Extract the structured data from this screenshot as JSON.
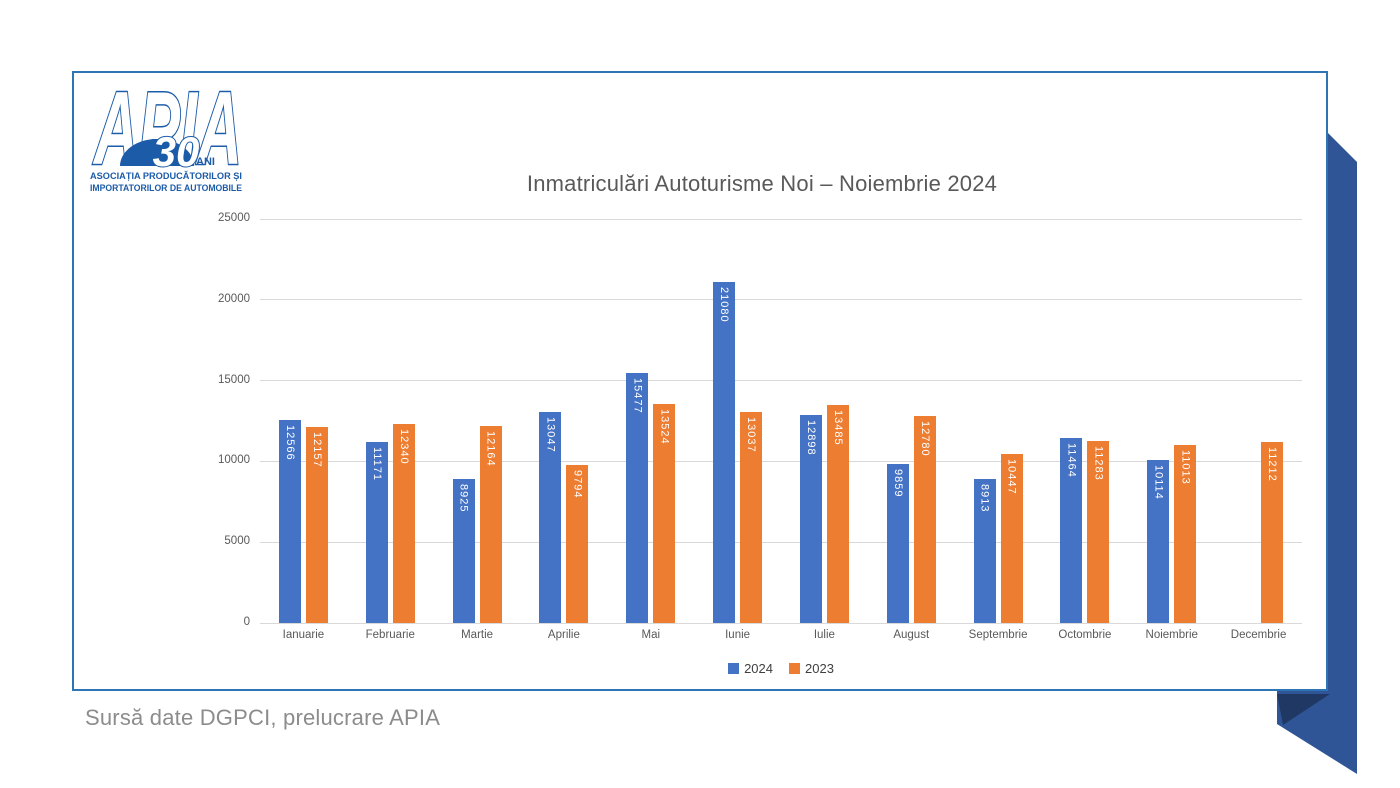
{
  "logo": {
    "acronym": "APIA",
    "anniversary_number": "30",
    "anniversary_suffix": "ANI",
    "line1": "ASOCIAȚIA PRODUCĂTORILOR ȘI",
    "line2": "IMPORTATORILOR DE AUTOMOBILE"
  },
  "chart_data": {
    "type": "bar",
    "title": "Inmatriculări Autoturisme Noi – Noiembrie 2024",
    "categories": [
      "Ianuarie",
      "Februarie",
      "Martie",
      "Aprilie",
      "Mai",
      "Iunie",
      "Iulie",
      "August",
      "Septembrie",
      "Octombrie",
      "Noiembrie",
      "Decembrie"
    ],
    "series": [
      {
        "name": "2024",
        "color": "#4472c4",
        "values": [
          12566,
          11171,
          8925,
          13047,
          15477,
          21080,
          12898,
          9859,
          8913,
          11464,
          10114,
          null
        ]
      },
      {
        "name": "2023",
        "color": "#ed7d31",
        "values": [
          12157,
          12340,
          12164,
          9794,
          13524,
          13037,
          13485,
          12780,
          10447,
          11283,
          11013,
          11212
        ]
      }
    ],
    "ylim": [
      0,
      25000
    ],
    "yticks": [
      0,
      5000,
      10000,
      15000,
      20000,
      25000
    ],
    "grid": true,
    "legend_position": "bottom",
    "data_labels": "inside-end rotated 90° clockwise, white"
  },
  "footer": {
    "source_text": "Sursă date DGPCI, prelucrare APIA"
  },
  "colors": {
    "series_2024": "#4472c4",
    "series_2023": "#ed7d31",
    "card_border": "#2e75b6",
    "ribbon_main": "#2f5597",
    "ribbon_fold": "#1f3864",
    "gridline": "#d9d9d9",
    "title_text": "#595959",
    "axis_text": "#595959",
    "footer_text": "#8c8c8c",
    "logo_blue": "#1c5ba8"
  }
}
